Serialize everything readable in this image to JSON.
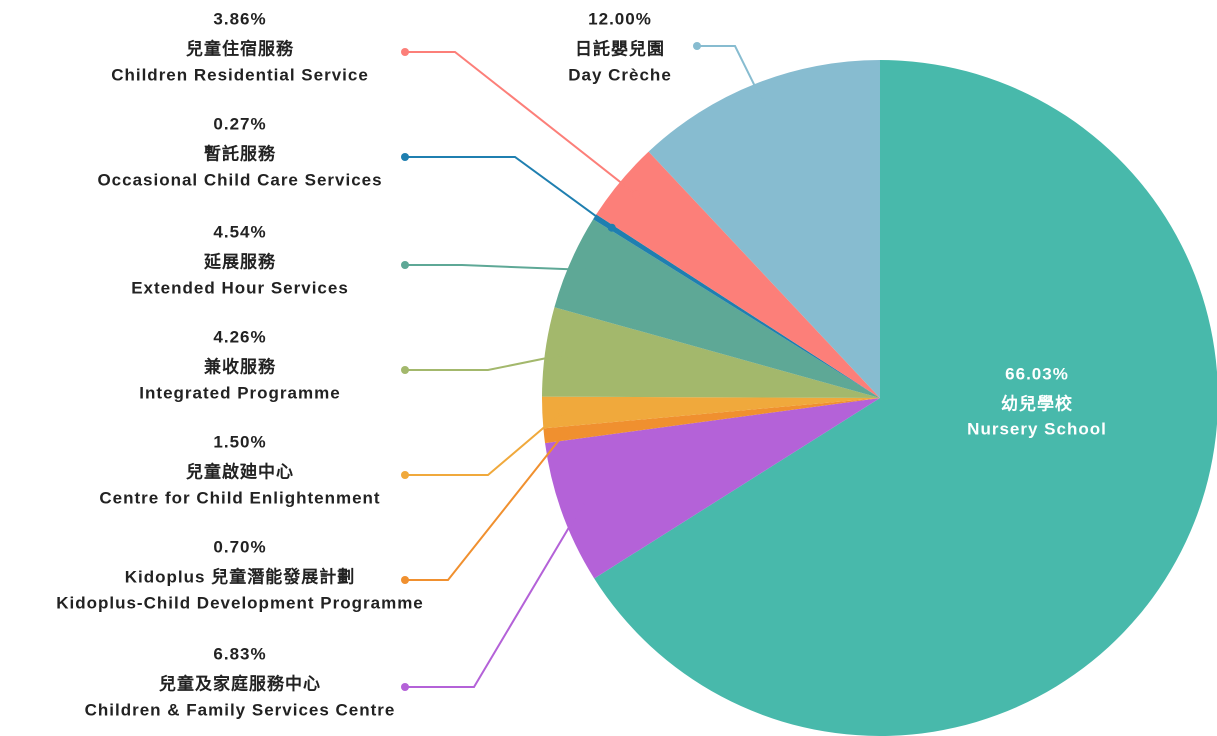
{
  "chart_data": {
    "type": "pie",
    "categories": [
      "Nursery School",
      "Children & Family Services Centre",
      "Kidoplus-Child Development Programme",
      "Centre for Child Enlightenment",
      "Integrated Programme",
      "Extended Hour Services",
      "Occasional Child Care Services",
      "Children Residential Service",
      "Day Crèche"
    ],
    "categories_zh": [
      "幼兒學校",
      "兒童及家庭服務中心",
      "Kidoplus 兒童潛能發展計劃",
      "兒童啟廸中心",
      "兼收服務",
      "延展服務",
      "暫託服務",
      "兒童住宿服務",
      "日託嬰兒園"
    ],
    "values": [
      66.03,
      6.83,
      0.7,
      1.5,
      4.26,
      4.54,
      0.27,
      3.86,
      12.0
    ],
    "value_labels": [
      "66.03%",
      "6.83%",
      "0.70%",
      "1.50%",
      "4.26%",
      "4.54%",
      "0.27%",
      "3.86%",
      "12.00%"
    ],
    "colors": [
      "#48b9ab",
      "#b462d8",
      "#f0902f",
      "#f0a93c",
      "#a3b86c",
      "#5ea896",
      "#1f7fb0",
      "#fc7f79",
      "#87bcd0"
    ]
  }
}
